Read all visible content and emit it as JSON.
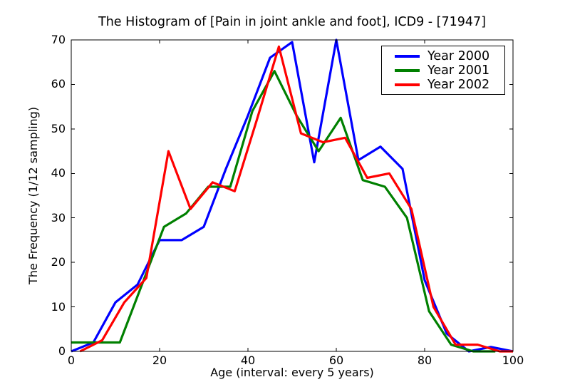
{
  "chart_data": {
    "type": "line",
    "title": "The Histogram of [Pain in joint ankle and foot], ICD9 - [71947]",
    "xlabel": "Age (interval: every 5 years)",
    "ylabel": "The Frequency (1/12 sampling)",
    "xlim": [
      0,
      100
    ],
    "ylim": [
      0,
      70
    ],
    "xticks": [
      0,
      20,
      40,
      60,
      80,
      100
    ],
    "yticks": [
      0,
      10,
      20,
      30,
      40,
      50,
      60,
      70
    ],
    "grid": false,
    "legend_position": "upper right",
    "series": [
      {
        "name": "Year 2000",
        "color": "#0000ff",
        "x": [
          0,
          5,
          10,
          15,
          20,
          25,
          30,
          35,
          40,
          45,
          50,
          55,
          60,
          65,
          70,
          75,
          80,
          85,
          90,
          95,
          100
        ],
        "values": [
          0,
          2,
          11,
          15,
          25,
          25,
          28,
          41,
          53,
          66,
          69.5,
          42.5,
          70,
          43,
          46,
          41,
          16,
          4,
          0,
          1,
          0
        ]
      },
      {
        "name": "Year 2001",
        "color": "#008000",
        "x": [
          0,
          5,
          11,
          16,
          21,
          26,
          31,
          36,
          41,
          46,
          51,
          56,
          61,
          66,
          71,
          76,
          81,
          86,
          91,
          96
        ],
        "values": [
          2,
          2,
          2,
          15,
          28,
          31,
          37,
          37,
          54,
          63,
          53,
          45,
          52.5,
          38.5,
          37,
          30,
          9,
          1.5,
          0,
          0
        ]
      },
      {
        "name": "Year 2002",
        "color": "#ff0000",
        "x": [
          2,
          7,
          12,
          17,
          22,
          27,
          32,
          37,
          42,
          47,
          52,
          57,
          62,
          67,
          72,
          77,
          82,
          87,
          92,
          97,
          100
        ],
        "values": [
          0,
          2.5,
          11,
          16.5,
          45,
          32,
          38,
          36,
          52,
          68.5,
          49,
          47,
          48,
          39,
          40,
          32,
          10,
          1.5,
          1.5,
          0,
          0
        ]
      }
    ]
  }
}
